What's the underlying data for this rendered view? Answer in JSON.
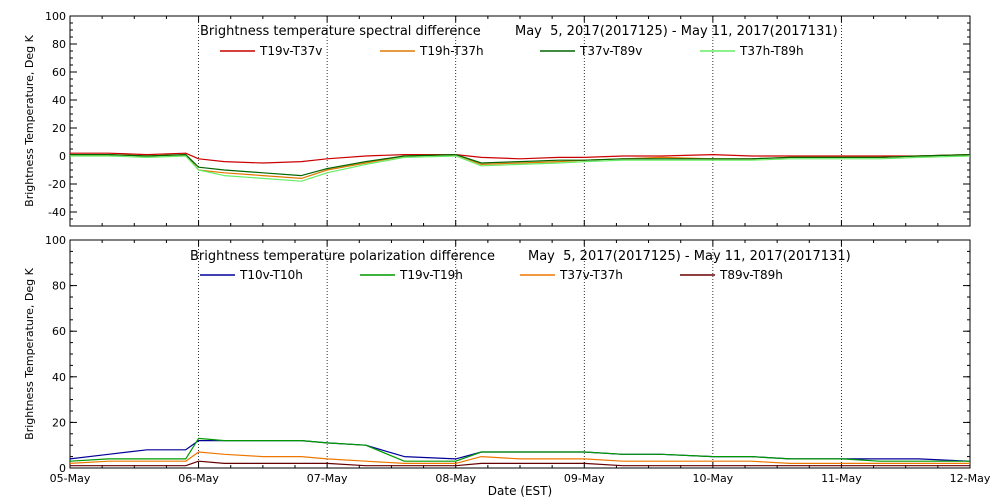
{
  "chart_data": [
    {
      "type": "line",
      "title": "Brightness temperature spectral difference",
      "date_range": "May  5, 2017(2017125) - May 11, 2017(2017131)",
      "ylabel": "Brightness Temperature, Deg K",
      "xlabel": "",
      "ylim": [
        -50,
        100
      ],
      "yticks": [
        -40,
        -20,
        0,
        20,
        40,
        60,
        80,
        100
      ],
      "xlim": [
        "05-May",
        "12-May"
      ],
      "xticks": [
        "05-May",
        "06-May",
        "07-May",
        "08-May",
        "09-May",
        "10-May",
        "11-May",
        "12-May"
      ],
      "grid": "dotted vertical lines at each day",
      "legend": "top, inside",
      "x_days": [
        0,
        0.3,
        0.6,
        0.9,
        1.0,
        1.2,
        1.5,
        1.8,
        2.0,
        2.3,
        2.6,
        3.0,
        3.2,
        3.5,
        3.8,
        4.0,
        4.3,
        4.6,
        5.0,
        5.3,
        5.6,
        6.0,
        6.3,
        6.6,
        7.0
      ],
      "series": [
        {
          "name": "T19v-T37v",
          "color": "#cc0000",
          "values": [
            2,
            2,
            1,
            2,
            -2,
            -4,
            -5,
            -4,
            -2,
            0,
            1,
            1,
            -1,
            -2,
            -1,
            -1,
            0,
            0,
            1,
            0,
            0,
            0,
            0,
            0,
            1
          ]
        },
        {
          "name": "T19h-T37h",
          "color": "#e07800",
          "values": [
            1,
            1,
            0,
            1,
            -10,
            -12,
            -14,
            -16,
            -10,
            -5,
            0,
            1,
            -6,
            -5,
            -4,
            -3,
            -2,
            -1,
            -2,
            -2,
            -1,
            -1,
            -1,
            0,
            1
          ]
        },
        {
          "name": "T37v-T89v",
          "color": "#006600",
          "values": [
            1,
            1,
            0,
            1,
            -8,
            -10,
            -12,
            -14,
            -9,
            -4,
            0,
            1,
            -5,
            -4,
            -3,
            -3,
            -2,
            -2,
            -2,
            -2,
            -1,
            -1,
            -1,
            0,
            1
          ]
        },
        {
          "name": "T37h-T89h",
          "color": "#66ee66",
          "values": [
            0,
            0,
            -1,
            0,
            -10,
            -14,
            -16,
            -18,
            -12,
            -6,
            -1,
            0,
            -7,
            -6,
            -5,
            -4,
            -3,
            -3,
            -3,
            -3,
            -2,
            -2,
            -2,
            -1,
            0
          ]
        }
      ]
    },
    {
      "type": "line",
      "title": "Brightness temperature polarization difference",
      "date_range": "May  5, 2017(2017125) - May 11, 2017(2017131)",
      "ylabel": "Brightness Temperature, Deg K",
      "xlabel": "Date (EST)",
      "ylim": [
        0,
        100
      ],
      "yticks": [
        0,
        20,
        40,
        60,
        80,
        100
      ],
      "xlim": [
        "05-May",
        "12-May"
      ],
      "xticks": [
        "05-May",
        "06-May",
        "07-May",
        "08-May",
        "09-May",
        "10-May",
        "11-May",
        "12-May"
      ],
      "grid": "dotted vertical lines at each day",
      "legend": "top, inside",
      "x_days": [
        0,
        0.3,
        0.6,
        0.9,
        1.0,
        1.2,
        1.5,
        1.8,
        2.0,
        2.3,
        2.6,
        3.0,
        3.2,
        3.5,
        3.8,
        4.0,
        4.3,
        4.6,
        5.0,
        5.3,
        5.6,
        6.0,
        6.3,
        6.6,
        7.0
      ],
      "series": [
        {
          "name": "T10v-T10h",
          "color": "#000099",
          "values": [
            4,
            6,
            8,
            8,
            12,
            12,
            12,
            12,
            11,
            10,
            5,
            4,
            7,
            7,
            7,
            7,
            6,
            6,
            5,
            5,
            4,
            4,
            4,
            4,
            3
          ]
        },
        {
          "name": "T19v-T19h",
          "color": "#009900",
          "values": [
            3,
            4,
            4,
            4,
            13,
            12,
            12,
            12,
            11,
            10,
            3,
            3,
            7,
            7,
            7,
            7,
            6,
            6,
            5,
            5,
            4,
            4,
            3,
            3,
            3
          ]
        },
        {
          "name": "T37v-T37h",
          "color": "#ee7700",
          "values": [
            2,
            3,
            3,
            3,
            7,
            6,
            5,
            5,
            4,
            3,
            2,
            2,
            5,
            4,
            4,
            4,
            3,
            3,
            3,
            3,
            2,
            2,
            2,
            2,
            2
          ]
        },
        {
          "name": "T89v-T89h",
          "color": "#660000",
          "values": [
            1,
            1,
            1,
            1,
            3,
            2,
            2,
            2,
            2,
            1,
            1,
            1,
            2,
            2,
            2,
            2,
            1,
            1,
            1,
            1,
            1,
            1,
            1,
            1,
            1
          ]
        }
      ]
    }
  ]
}
